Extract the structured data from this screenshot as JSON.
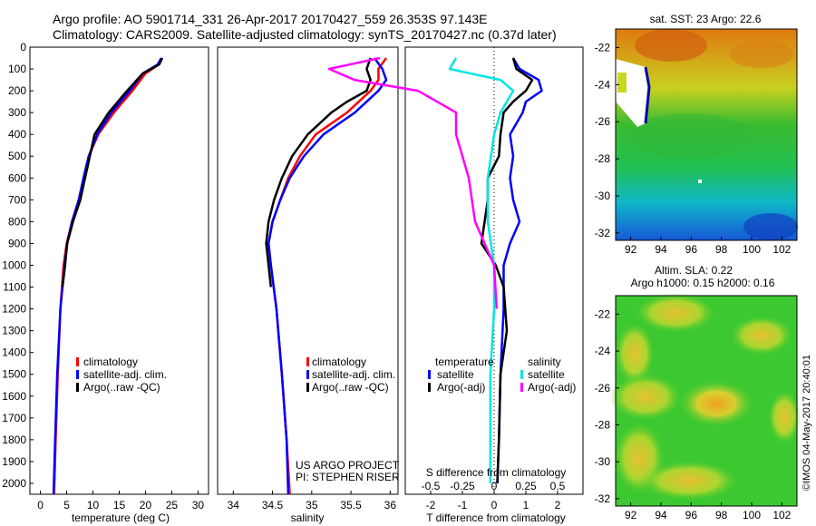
{
  "title": {
    "line1": "Argo profile: AO 5901714_331 26-Apr-2017 20170427_559 26.353S 97.143E",
    "line2": "Climatology: CARS2009. Satellite-adjusted climatology: synTS_20170427.nc (0.37d later)"
  },
  "depth_ticks": [
    "0",
    "100",
    "200",
    "300",
    "400",
    "500",
    "600",
    "700",
    "800",
    "900",
    "1000",
    "1100",
    "1200",
    "1300",
    "1400",
    "1500",
    "1600",
    "1700",
    "1800",
    "1900",
    "2000"
  ],
  "colors": {
    "climatology": "#ff0000",
    "satellite": "#0000ff",
    "argo": "#000000",
    "argo_salinity_diff": "#ff00ff",
    "satellite_salinity_diff": "#00e5e5"
  },
  "chart_data": [
    {
      "type": "line",
      "xlabel": "temperature (deg C)",
      "xticks": [
        "0",
        "5",
        "10",
        "15",
        "20",
        "25",
        "30"
      ],
      "xlim": [
        -2,
        32
      ],
      "ylim": [
        2050,
        0
      ],
      "legend": [
        "climatology",
        "satellite-adj. clim.",
        "Argo(..raw -QC)"
      ],
      "series": [
        {
          "name": "climatology",
          "depth": [
            50,
            80,
            120,
            200,
            300,
            400,
            500,
            600,
            700,
            800,
            900,
            1000,
            1200,
            1500,
            1800,
            2050
          ],
          "values": [
            23,
            22.5,
            20,
            17.5,
            14,
            11,
            9.2,
            8.2,
            7.3,
            6,
            5,
            4.4,
            3.8,
            3.3,
            2.9,
            2.6
          ]
        },
        {
          "name": "satellite-adj. clim.",
          "depth": [
            50,
            80,
            120,
            200,
            300,
            400,
            500,
            600,
            700,
            800,
            900,
            1000,
            1200,
            1500,
            1800,
            2050
          ],
          "values": [
            23,
            22.3,
            19.5,
            17,
            13.5,
            10.8,
            9.2,
            8.2,
            7.3,
            6,
            5.1,
            4.6,
            3.8,
            3.2,
            2.8,
            2.5
          ]
        },
        {
          "name": "Argo(..raw -QC)",
          "depth": [
            50,
            80,
            120,
            200,
            300,
            400,
            500,
            600,
            700,
            800,
            900,
            1000,
            1100
          ],
          "values": [
            23.2,
            22.6,
            19.5,
            16.5,
            13,
            10.3,
            9.4,
            8.5,
            7.6,
            6.2,
            5.1,
            4.7,
            4.2
          ]
        }
      ]
    },
    {
      "type": "line",
      "xlabel": "salinity",
      "xticks": [
        "34",
        "34.5",
        "35",
        "35.5",
        "36"
      ],
      "xlim": [
        33.8,
        36.1
      ],
      "ylim": [
        2050,
        0
      ],
      "legend": [
        "climatology",
        "satellite-adj. clim.",
        "Argo(..raw -QC)"
      ],
      "annotation": [
        "US ARGO PROJECT",
        "PI: STEPHEN RISER"
      ],
      "series": [
        {
          "name": "climatology",
          "depth": [
            50,
            100,
            150,
            200,
            300,
            400,
            500,
            600,
            700,
            800,
            900,
            1000,
            1200,
            1500,
            1800,
            2050
          ],
          "values": [
            35.95,
            35.85,
            35.85,
            35.75,
            35.45,
            35.05,
            34.85,
            34.7,
            34.6,
            34.5,
            34.45,
            34.48,
            34.55,
            34.62,
            34.68,
            34.72
          ]
        },
        {
          "name": "satellite-adj. clim.",
          "depth": [
            50,
            100,
            150,
            200,
            300,
            400,
            500,
            600,
            700,
            800,
            900,
            1000,
            1200,
            1500,
            1800,
            2050
          ],
          "values": [
            35.8,
            35.9,
            35.95,
            35.85,
            35.55,
            35.15,
            34.9,
            34.72,
            34.6,
            34.5,
            34.45,
            34.48,
            34.55,
            34.62,
            34.68,
            34.7
          ]
        },
        {
          "name": "Argo(..raw -QC)",
          "depth": [
            50,
            100,
            150,
            200,
            250,
            300,
            400,
            500,
            600,
            700,
            800,
            900,
            1000,
            1100
          ],
          "values": [
            35.75,
            35.7,
            35.75,
            35.7,
            35.45,
            35.25,
            34.95,
            34.75,
            34.62,
            34.52,
            34.45,
            34.42,
            34.45,
            34.48
          ]
        }
      ]
    },
    {
      "type": "line",
      "xlabel": "T difference from climatology",
      "xlabel2": "S difference from climatology",
      "xticks": [
        "-2",
        "-1",
        "0",
        "1",
        "2"
      ],
      "xticks2": [
        "-0.5",
        "-0.25",
        "0",
        "0.25",
        "0.5"
      ],
      "xlim": [
        -2.8,
        2.8
      ],
      "ylim": [
        2050,
        0
      ],
      "legend_groups": [
        {
          "title": "temperature",
          "items": [
            "satellite",
            "Argo(-adj)"
          ]
        },
        {
          "title": "salinity",
          "items": [
            "satellite",
            "Argo(-adj)"
          ]
        }
      ],
      "series": [
        {
          "name": "T satellite",
          "depth": [
            50,
            100,
            150,
            200,
            250,
            300,
            400,
            500,
            600,
            700,
            800,
            900,
            1000,
            1200,
            1500,
            1800,
            2000
          ],
          "values": [
            0.6,
            0.8,
            1.4,
            1.5,
            1.0,
            0.9,
            0.5,
            0.6,
            0.5,
            0.6,
            0.8,
            0.5,
            0.3,
            0.3,
            0.2,
            0.15,
            0.1
          ]
        },
        {
          "name": "T Argo(-adj)",
          "depth": [
            50,
            100,
            150,
            200,
            250,
            300,
            400,
            500,
            600,
            700,
            800,
            900,
            1000,
            1100,
            1300,
            1500,
            1800,
            2000
          ],
          "values": [
            0.6,
            0.7,
            1.2,
            1.0,
            0.6,
            0.3,
            0.2,
            0.15,
            -0.2,
            -0.2,
            -0.3,
            -0.4,
            0.05,
            0.3,
            0.4,
            0.2,
            0.15,
            0.1
          ]
        },
        {
          "name": "S satellite",
          "depth": [
            50,
            100,
            150,
            200,
            250,
            300,
            400,
            600,
            800,
            1000,
            1200,
            1500,
            1800,
            2000
          ],
          "values": [
            -0.3,
            -0.35,
            0.05,
            0.15,
            0.1,
            0.05,
            0.0,
            -0.05,
            -0.05,
            0.0,
            0.0,
            -0.03,
            -0.03,
            -0.03
          ]
        },
        {
          "name": "S Argo(-adj)",
          "depth": [
            50,
            100,
            150,
            200,
            300,
            400,
            500,
            600,
            800,
            1000,
            1200
          ],
          "values": [
            -0.9,
            -1.3,
            -1.1,
            -0.6,
            -0.3,
            -0.3,
            -0.25,
            -0.2,
            -0.15,
            0.0,
            0.02
          ]
        }
      ]
    }
  ],
  "maps": {
    "sst": {
      "title": "sat. SST: 23 Argo: 22.6",
      "xticks": [
        "92",
        "94",
        "96",
        "98",
        "100",
        "102"
      ],
      "yticks": [
        "-22",
        "-24",
        "-26",
        "-28",
        "-30",
        "-32"
      ]
    },
    "sla": {
      "title1": "Altim. SLA: 0.22",
      "title2": "Argo h1000: 0.15 h2000: 0.16",
      "xticks": [
        "92",
        "94",
        "96",
        "98",
        "100",
        "102"
      ],
      "yticks": [
        "-22",
        "-24",
        "-26",
        "-28",
        "-30",
        "-32"
      ]
    }
  },
  "credit": "©IMOS 04-May-2017 20:40:01"
}
